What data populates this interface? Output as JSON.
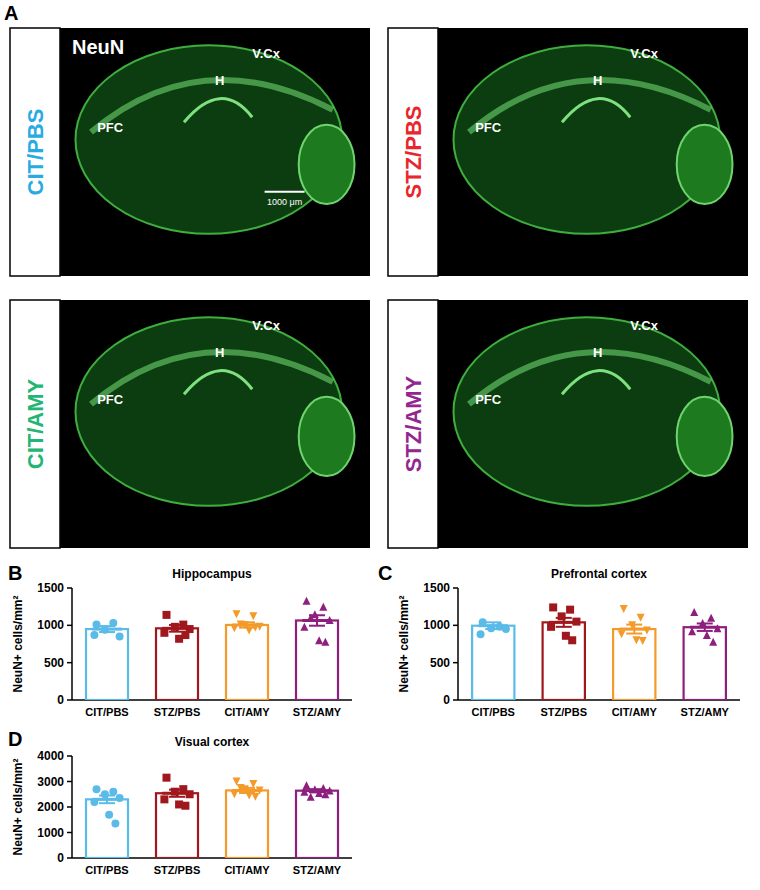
{
  "panels": [
    "A",
    "B",
    "C",
    "D"
  ],
  "figure_a": {
    "stain": "NeuN",
    "scale_bar": "1000 μm",
    "regions": [
      "PFC",
      "H",
      "V.Cx"
    ],
    "groups": [
      {
        "label": "CIT/PBS",
        "color": "#29abe2"
      },
      {
        "label": "STZ/PBS",
        "color": "#e8262b"
      },
      {
        "label": "CIT/AMY",
        "color": "#22b573"
      },
      {
        "label": "STZ/AMY",
        "color": "#93278f"
      }
    ]
  },
  "chart_data": [
    {
      "type": "bar",
      "title": "Hippocampus",
      "y_label": "NeuN+ cells/mm²",
      "categories": [
        "CIT/PBS",
        "STZ/PBS",
        "CIT/AMY",
        "STZ/AMY"
      ],
      "values": [
        950,
        960,
        1005,
        1065
      ],
      "errors": [
        40,
        45,
        35,
        70
      ],
      "points": [
        [
          1010,
          1030,
          940,
          850,
          870
        ],
        [
          1140,
          1010,
          980,
          950,
          900,
          820,
          870
        ],
        [
          1150,
          1120,
          1000,
          980,
          960,
          930,
          970,
          1010
        ],
        [
          1330,
          1250,
          1150,
          1070,
          980,
          800,
          780,
          1100
        ]
      ],
      "colors": [
        "#5bbbe8",
        "#a0181e",
        "#f39a2b",
        "#8e1f7e"
      ],
      "markers": [
        "circle",
        "square",
        "triangle-down",
        "triangle-up"
      ],
      "ylim": [
        0,
        1500
      ],
      "yticks": [
        0,
        500,
        1000,
        1500
      ]
    },
    {
      "type": "bar",
      "title": "Prefrontal cortex",
      "y_label": "NeuN+ cells/mm²",
      "categories": [
        "CIT/PBS",
        "STZ/PBS",
        "CIT/AMY",
        "STZ/AMY"
      ],
      "values": [
        995,
        1040,
        950,
        975
      ],
      "errors": [
        45,
        60,
        60,
        50
      ],
      "points": [
        [
          1040,
          980,
          960,
          950,
          880
        ],
        [
          1240,
          1210,
          1120,
          1050,
          980,
          860,
          800
        ],
        [
          1220,
          1100,
          1000,
          930,
          880,
          800,
          790
        ],
        [
          1180,
          1100,
          1030,
          960,
          920,
          870,
          780
        ]
      ],
      "colors": [
        "#5bbbe8",
        "#a0181e",
        "#f39a2b",
        "#8e1f7e"
      ],
      "markers": [
        "circle",
        "square",
        "triangle-down",
        "triangle-up"
      ],
      "ylim": [
        0,
        1500
      ],
      "yticks": [
        0,
        500,
        1000,
        1500
      ]
    },
    {
      "type": "bar",
      "title": "Visual cortex",
      "y_label": "NeuN+ cells/mm²",
      "categories": [
        "CIT/PBS",
        "STZ/PBS",
        "CIT/AMY",
        "STZ/AMY"
      ],
      "values": [
        2300,
        2540,
        2650,
        2640
      ],
      "errors": [
        150,
        140,
        100,
        60
      ],
      "points": [
        [
          2700,
          2600,
          2500,
          2350,
          2200,
          1700,
          1350
        ],
        [
          3150,
          2700,
          2600,
          2500,
          2300,
          2100,
          2050
        ],
        [
          3000,
          2900,
          2700,
          2650,
          2500,
          2450,
          2400,
          2750
        ],
        [
          2850,
          2750,
          2700,
          2650,
          2600,
          2550,
          2500,
          2400
        ]
      ],
      "colors": [
        "#5bbbe8",
        "#a0181e",
        "#f39a2b",
        "#8e1f7e"
      ],
      "markers": [
        "circle",
        "square",
        "triangle-down",
        "triangle-up"
      ],
      "ylim": [
        0,
        4000
      ],
      "yticks": [
        0,
        1000,
        2000,
        3000,
        4000
      ]
    }
  ]
}
